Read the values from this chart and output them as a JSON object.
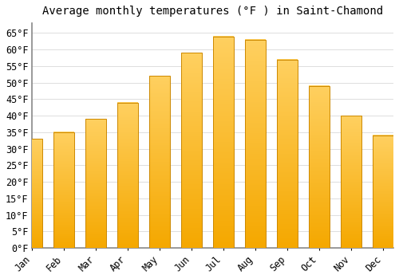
{
  "title": "Average monthly temperatures (°F ) in Saint-Chamond",
  "months": [
    "Jan",
    "Feb",
    "Mar",
    "Apr",
    "May",
    "Jun",
    "Jul",
    "Aug",
    "Sep",
    "Oct",
    "Nov",
    "Dec"
  ],
  "values": [
    33,
    35,
    39,
    44,
    52,
    59,
    64,
    63,
    57,
    49,
    40,
    34
  ],
  "bar_color_top": "#FFD060",
  "bar_color_bottom": "#F5A800",
  "bar_edge_color": "#CC8800",
  "background_color": "#FFFFFF",
  "grid_color": "#DDDDDD",
  "ylim": [
    0,
    68
  ],
  "yticks": [
    0,
    5,
    10,
    15,
    20,
    25,
    30,
    35,
    40,
    45,
    50,
    55,
    60,
    65
  ],
  "title_fontsize": 10,
  "tick_fontsize": 8.5
}
